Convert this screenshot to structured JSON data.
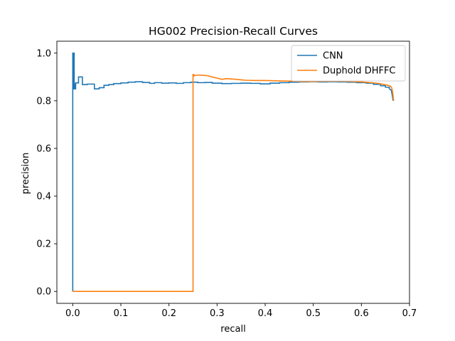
{
  "chart_data": {
    "type": "line",
    "title": "HG002 Precision-Recall Curves",
    "xlabel": "recall",
    "ylabel": "precision",
    "xlim": [
      -0.033,
      0.7
    ],
    "ylim": [
      -0.05,
      1.05
    ],
    "xticks": [
      0.0,
      0.1,
      0.2,
      0.3,
      0.4,
      0.5,
      0.6,
      0.7
    ],
    "xtick_labels": [
      "0.0",
      "0.1",
      "0.2",
      "0.3",
      "0.4",
      "0.5",
      "0.6",
      "0.7"
    ],
    "yticks": [
      0.0,
      0.2,
      0.4,
      0.6,
      0.8,
      1.0
    ],
    "ytick_labels": [
      "0.0",
      "0.2",
      "0.4",
      "0.6",
      "0.8",
      "1.0"
    ],
    "grid": false,
    "legend_position": "top-right",
    "series": [
      {
        "name": "CNN",
        "color": "#1f77b4",
        "x": [
          0.0,
          0.0,
          0.001,
          0.001,
          0.002,
          0.002,
          0.003,
          0.003,
          0.004,
          0.004,
          0.006,
          0.006,
          0.012,
          0.012,
          0.02,
          0.02,
          0.03,
          0.03,
          0.045,
          0.045,
          0.055,
          0.055,
          0.065,
          0.065,
          0.075,
          0.075,
          0.085,
          0.085,
          0.1,
          0.1,
          0.115,
          0.115,
          0.13,
          0.13,
          0.145,
          0.145,
          0.16,
          0.16,
          0.17,
          0.17,
          0.185,
          0.185,
          0.2,
          0.2,
          0.215,
          0.215,
          0.23,
          0.23,
          0.245,
          0.245,
          0.26,
          0.26,
          0.275,
          0.275,
          0.29,
          0.29,
          0.31,
          0.31,
          0.33,
          0.33,
          0.35,
          0.35,
          0.37,
          0.37,
          0.39,
          0.39,
          0.41,
          0.41,
          0.43,
          0.43,
          0.45,
          0.45,
          0.47,
          0.47,
          0.49,
          0.49,
          0.51,
          0.51,
          0.53,
          0.53,
          0.55,
          0.55,
          0.57,
          0.57,
          0.59,
          0.59,
          0.61,
          0.61,
          0.625,
          0.625,
          0.64,
          0.64,
          0.65,
          0.65,
          0.658,
          0.658,
          0.662,
          0.664,
          0.666
        ],
        "y": [
          0.0,
          1.0,
          1.0,
          0.85,
          0.85,
          1.0,
          1.0,
          0.87,
          0.87,
          0.85,
          0.85,
          0.875,
          0.875,
          0.9,
          0.9,
          0.868,
          0.868,
          0.87,
          0.87,
          0.85,
          0.85,
          0.855,
          0.855,
          0.865,
          0.865,
          0.868,
          0.868,
          0.872,
          0.872,
          0.875,
          0.875,
          0.878,
          0.878,
          0.88,
          0.88,
          0.877,
          0.877,
          0.873,
          0.873,
          0.876,
          0.876,
          0.874,
          0.874,
          0.875,
          0.875,
          0.873,
          0.873,
          0.876,
          0.876,
          0.878,
          0.878,
          0.876,
          0.876,
          0.877,
          0.877,
          0.874,
          0.874,
          0.872,
          0.872,
          0.873,
          0.873,
          0.874,
          0.874,
          0.873,
          0.873,
          0.871,
          0.871,
          0.874,
          0.874,
          0.876,
          0.876,
          0.878,
          0.878,
          0.879,
          0.879,
          0.88,
          0.88,
          0.879,
          0.879,
          0.88,
          0.88,
          0.879,
          0.879,
          0.878,
          0.878,
          0.876,
          0.876,
          0.874,
          0.874,
          0.869,
          0.869,
          0.863,
          0.863,
          0.857,
          0.857,
          0.85,
          0.845,
          0.825,
          0.8
        ]
      },
      {
        "name": "Duphold DHFFC",
        "color": "#ff7f0e",
        "x": [
          0.0,
          0.248,
          0.248,
          0.25,
          0.25,
          0.252,
          0.252,
          0.26,
          0.27,
          0.28,
          0.29,
          0.3,
          0.31,
          0.32,
          0.34,
          0.36,
          0.38,
          0.4,
          0.42,
          0.44,
          0.46,
          0.48,
          0.5,
          0.52,
          0.54,
          0.56,
          0.58,
          0.6,
          0.62,
          0.635,
          0.645,
          0.655,
          0.66,
          0.663,
          0.665,
          0.667
        ],
        "y": [
          0.0,
          0.0,
          0.0,
          0.0,
          0.91,
          0.91,
          0.905,
          0.908,
          0.907,
          0.905,
          0.9,
          0.895,
          0.89,
          0.893,
          0.89,
          0.886,
          0.885,
          0.885,
          0.884,
          0.883,
          0.882,
          0.881,
          0.881,
          0.882,
          0.882,
          0.882,
          0.881,
          0.879,
          0.876,
          0.873,
          0.869,
          0.865,
          0.862,
          0.855,
          0.835,
          0.8
        ]
      }
    ]
  }
}
